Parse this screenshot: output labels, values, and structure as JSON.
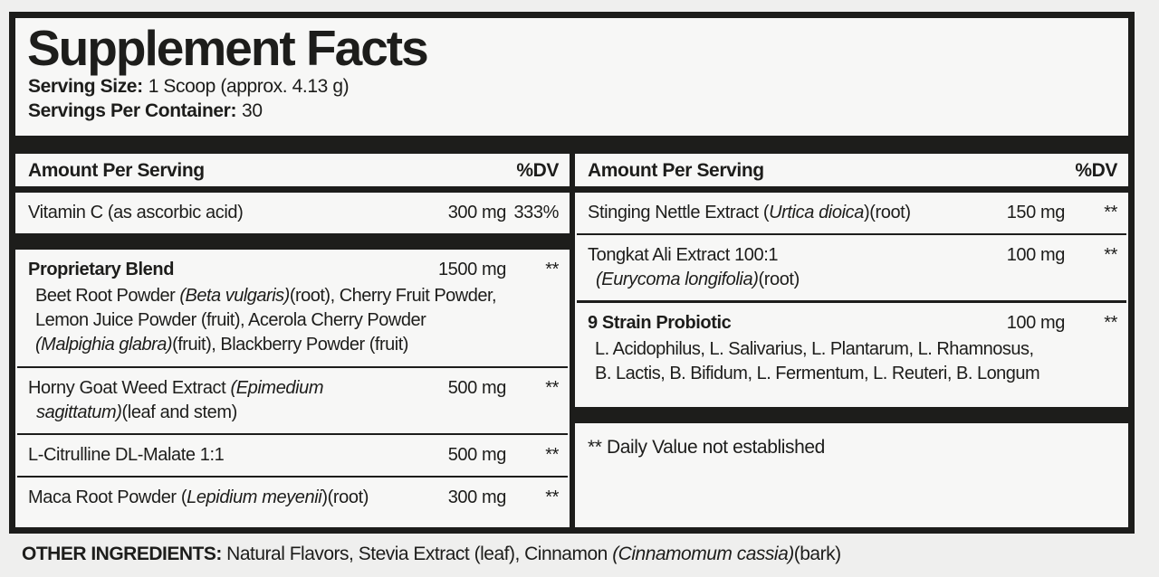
{
  "colors": {
    "ink": "#1d1d1b",
    "panel_bg": "#f7f7f6",
    "page_bg": "#efefee"
  },
  "title": "Supplement Facts",
  "serving": {
    "size_label": "Serving Size:",
    "size_value": "1 Scoop (approx. 4.13 g)",
    "container_label": "Servings Per Container:",
    "container_value": "30"
  },
  "column_header": {
    "amount_label": "Amount Per Serving",
    "dv_label": "%DV"
  },
  "left": {
    "vitamin_c": {
      "name": [
        {
          "t": "Vitamin C (as ascorbic acid)"
        }
      ],
      "amount": "300 mg",
      "dv": "333%"
    },
    "blend": {
      "name": [
        {
          "t": "Proprietary Blend",
          "b": true
        }
      ],
      "amount": "1500 mg",
      "dv": "**",
      "ingredients": [
        {
          "t": "Beet Root Powder "
        },
        {
          "t": "(Beta vulgaris)",
          "i": true
        },
        {
          "t": "(root), Cherry Fruit Powder,"
        },
        {
          "br": true
        },
        {
          "t": "Lemon Juice Powder (fruit), Acerola Cherry Powder"
        },
        {
          "br": true
        },
        {
          "t": "(Malpighia glabra)",
          "i": true
        },
        {
          "t": "(fruit), Blackberry Powder (fruit)"
        }
      ]
    },
    "horny_goat_weed": {
      "name": [
        {
          "t": "Horny Goat Weed Extract "
        },
        {
          "t": "(Epimedium",
          "i": true
        },
        {
          "br": true
        },
        {
          "t": "sagittatum)",
          "i": true
        },
        {
          "t": "(leaf and stem)"
        }
      ],
      "amount": "500 mg",
      "dv": "**"
    },
    "citrulline": {
      "name": [
        {
          "t": "L-Citrulline DL-Malate 1:1"
        }
      ],
      "amount": "500 mg",
      "dv": "**"
    },
    "maca": {
      "name": [
        {
          "t": "Maca Root Powder ("
        },
        {
          "t": "Lepidium meyenii",
          "i": true
        },
        {
          "t": ")(root)"
        }
      ],
      "amount": "300 mg",
      "dv": "**"
    }
  },
  "right": {
    "stinging_nettle": {
      "name": [
        {
          "t": "Stinging Nettle Extract ("
        },
        {
          "t": "Urtica dioica",
          "i": true
        },
        {
          "t": ")(root)"
        }
      ],
      "amount": "150 mg",
      "dv": "**"
    },
    "tongkat_ali": {
      "name": [
        {
          "t": "Tongkat Ali Extract 100:1"
        },
        {
          "br": true
        },
        {
          "t": "(Eurycoma longifolia)",
          "i": true
        },
        {
          "t": "(root)"
        }
      ],
      "amount": "100 mg",
      "dv": "**"
    },
    "probiotic": {
      "name": [
        {
          "t": "9 Strain Probiotic",
          "b": true
        }
      ],
      "amount": "100 mg",
      "dv": "**",
      "strains": [
        {
          "t": "L. Acidophilus, L. Salivarius, L. Plantarum, L. Rhamnosus,"
        },
        {
          "br": true
        },
        {
          "t": "B. Lactis, B. Bifidum, L. Fermentum, L. Reuteri, B. Longum"
        }
      ]
    },
    "footnote": "** Daily Value not established"
  },
  "other_ingredients": [
    {
      "t": "OTHER INGREDIENTS:",
      "b": true
    },
    {
      "t": " Natural Flavors, Stevia Extract (leaf), Cinnamon "
    },
    {
      "t": "(Cinnamomum cassia)",
      "i": true
    },
    {
      "t": "(bark)"
    }
  ]
}
